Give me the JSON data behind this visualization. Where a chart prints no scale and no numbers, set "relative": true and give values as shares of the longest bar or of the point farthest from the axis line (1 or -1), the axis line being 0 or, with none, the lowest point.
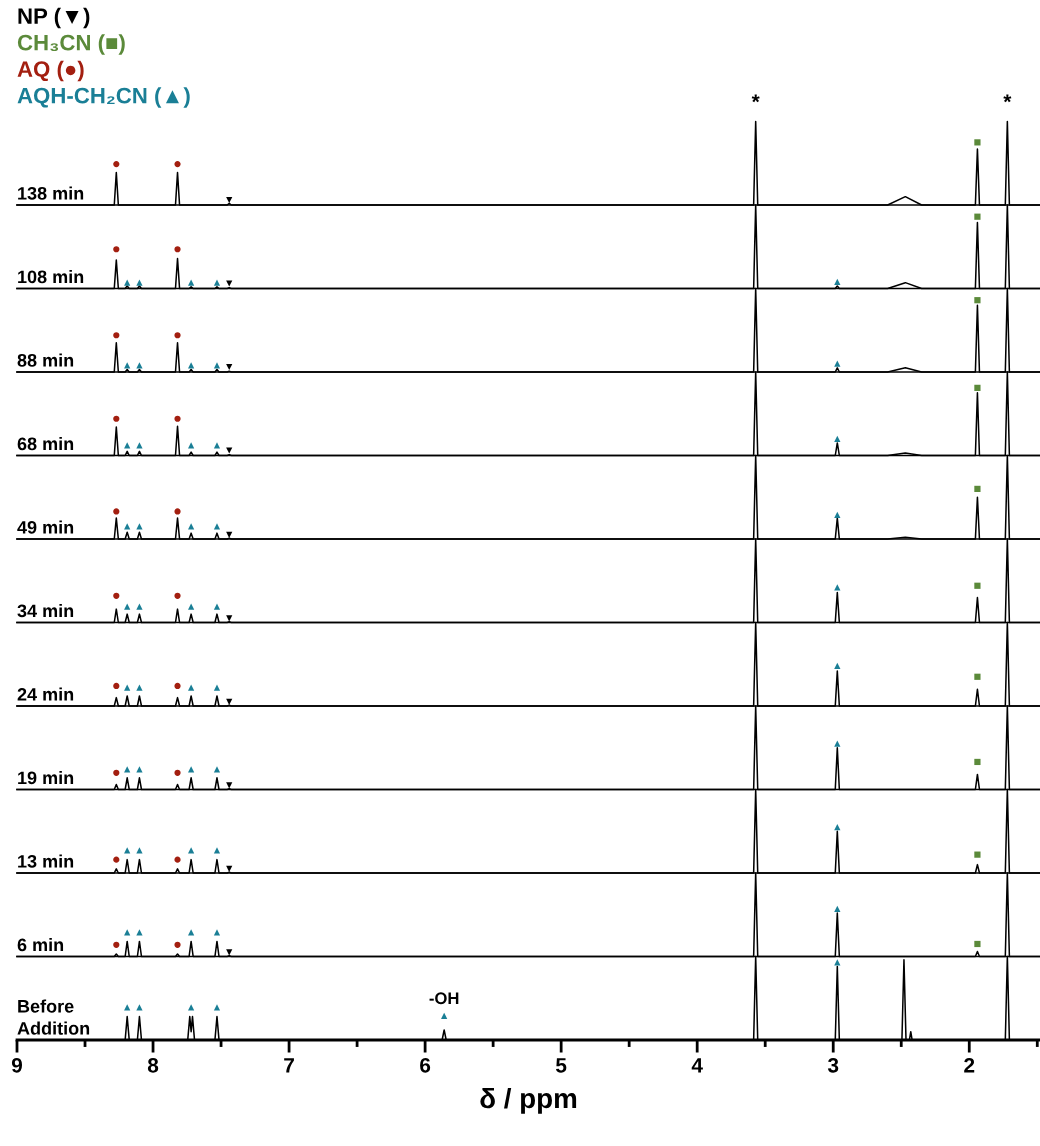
{
  "chart_data": [
    {
      "type": "line",
      "relative": true,
      "xlim": [
        9,
        1.48
      ],
      "tick_labels": false,
      "annotations": [
        "138 min",
        {
          "text": "*",
          "x": 3.57,
          "y": 1
        },
        {
          "text": "*",
          "x": 1.72,
          "y": 1
        }
      ],
      "series": [
        {
          "color": "#000000",
          "x": [
            9,
            8.285,
            8.27,
            8.255,
            7.835,
            7.82,
            7.805,
            7.455,
            7.44,
            7.425,
            3.585,
            3.57,
            3.555,
            2.6,
            2.47,
            2.35,
            1.955,
            1.94,
            1.925,
            1.735,
            1.72,
            1.705,
            1.48
          ],
          "values": [
            0,
            0,
            0.39,
            0,
            0,
            0.39,
            0,
            0,
            0.02,
            0,
            0,
            1,
            0,
            0,
            0.1,
            0,
            0,
            0.67,
            0,
            0,
            1,
            0,
            0
          ]
        },
        {
          "type": "scatter",
          "marker": "triangle_down",
          "color": "#000000",
          "x": [
            7.44
          ],
          "values": [
            0.06
          ]
        },
        {
          "type": "scatter",
          "marker": "square",
          "color": "#5b8a3a",
          "x": [
            1.94
          ],
          "values": [
            0.75
          ]
        },
        {
          "type": "scatter",
          "marker": "circle",
          "color": "#a31f10",
          "x": [
            8.27,
            7.82
          ],
          "values": [
            0.49,
            0.49
          ]
        }
      ]
    },
    {
      "type": "line",
      "relative": true,
      "xlim": [
        9,
        1.48
      ],
      "tick_labels": false,
      "annotations": [
        "108 min"
      ],
      "series": [
        {
          "color": "#000000",
          "x": [
            9,
            8.285,
            8.27,
            8.255,
            8.205,
            8.19,
            8.175,
            8.115,
            8.1,
            8.085,
            7.835,
            7.82,
            7.805,
            7.735,
            7.72,
            7.705,
            7.545,
            7.53,
            7.515,
            7.455,
            7.44,
            7.425,
            3.585,
            3.57,
            3.555,
            2.985,
            2.97,
            2.955,
            2.6,
            2.47,
            2.35,
            1.955,
            1.94,
            1.925,
            1.735,
            1.72,
            1.705,
            1.48
          ],
          "values": [
            0,
            0,
            0.34,
            0,
            0,
            0.03,
            0,
            0,
            0.03,
            0,
            0,
            0.36,
            0,
            0,
            0.02,
            0,
            0,
            0.02,
            0,
            0,
            0.01,
            0,
            0,
            1,
            0,
            0,
            0.03,
            0,
            0,
            0.07,
            0,
            0,
            0.79,
            0,
            0,
            1,
            0,
            0
          ]
        },
        {
          "type": "scatter",
          "name": "NP (▼)",
          "marker": "triangle_down",
          "color": "#000000",
          "x": [
            7.44
          ],
          "values": [
            0.06
          ]
        },
        {
          "type": "scatter",
          "name": "CH₃CN (■)",
          "marker": "square",
          "color": "#5b8a3a",
          "x": [
            1.94
          ],
          "values": [
            0.86
          ]
        },
        {
          "type": "scatter",
          "name": "AQ (●)",
          "marker": "circle",
          "color": "#a31f10",
          "x": [
            8.27,
            7.82
          ],
          "values": [
            0.47,
            0.47
          ]
        },
        {
          "type": "scatter",
          "name": "AQH-CH₂CN (▲)",
          "marker": "triangle",
          "color": "#1a7f96",
          "x": [
            8.19,
            8.1,
            7.72,
            7.53,
            2.97
          ],
          "values": [
            0.07,
            0.07,
            0.07,
            0.07,
            0.08
          ]
        }
      ]
    },
    {
      "type": "line",
      "relative": true,
      "xlim": [
        9,
        1.48
      ],
      "tick_labels": false,
      "annotations": [
        "88 min"
      ],
      "series": [
        {
          "color": "#000000",
          "x": [
            9,
            8.285,
            8.27,
            8.255,
            8.205,
            8.19,
            8.175,
            8.115,
            8.1,
            8.085,
            7.835,
            7.82,
            7.805,
            7.735,
            7.72,
            7.705,
            7.545,
            7.53,
            7.515,
            7.455,
            7.44,
            7.425,
            3.585,
            3.57,
            3.555,
            2.985,
            2.97,
            2.955,
            2.6,
            2.47,
            2.35,
            1.955,
            1.94,
            1.925,
            1.735,
            1.72,
            1.705,
            1.48
          ],
          "values": [
            0,
            0,
            0.35,
            0,
            0,
            0.03,
            0,
            0,
            0.03,
            0,
            0,
            0.35,
            0,
            0,
            0.03,
            0,
            0,
            0.03,
            0,
            0,
            0.01,
            0,
            0,
            1,
            0,
            0,
            0.05,
            0,
            0,
            0.05,
            0,
            0,
            0.8,
            0,
            0,
            1,
            0,
            0
          ]
        },
        {
          "type": "scatter",
          "marker": "triangle_down",
          "color": "#000000",
          "x": [
            7.44
          ],
          "values": [
            0.06
          ]
        },
        {
          "type": "scatter",
          "marker": "square",
          "color": "#5b8a3a",
          "x": [
            1.94
          ],
          "values": [
            0.86
          ]
        },
        {
          "type": "scatter",
          "marker": "circle",
          "color": "#a31f10",
          "x": [
            8.27,
            7.82
          ],
          "values": [
            0.44,
            0.44
          ]
        },
        {
          "type": "scatter",
          "marker": "triangle",
          "color": "#1a7f96",
          "x": [
            8.19,
            8.1,
            7.72,
            7.53,
            2.97
          ],
          "values": [
            0.08,
            0.08,
            0.08,
            0.08,
            0.1
          ]
        }
      ]
    },
    {
      "type": "line",
      "relative": true,
      "xlim": [
        9,
        1.48
      ],
      "tick_labels": false,
      "annotations": [
        "68 min"
      ],
      "series": [
        {
          "color": "#000000",
          "x": [
            9,
            8.285,
            8.27,
            8.255,
            8.205,
            8.19,
            8.175,
            8.115,
            8.1,
            8.085,
            7.835,
            7.82,
            7.805,
            7.735,
            7.72,
            7.705,
            7.545,
            7.53,
            7.515,
            7.455,
            7.44,
            7.425,
            3.585,
            3.57,
            3.555,
            2.985,
            2.97,
            2.955,
            2.6,
            2.47,
            2.35,
            1.955,
            1.94,
            1.925,
            1.735,
            1.72,
            1.705,
            1.48
          ],
          "values": [
            0,
            0,
            0.34,
            0,
            0,
            0.05,
            0,
            0,
            0.05,
            0,
            0,
            0.35,
            0,
            0,
            0.04,
            0,
            0,
            0.04,
            0,
            0,
            0.01,
            0,
            0,
            1,
            0,
            0,
            0.15,
            0,
            0,
            0.03,
            0,
            0,
            0.75,
            0,
            0,
            1,
            0,
            0
          ]
        },
        {
          "type": "scatter",
          "marker": "triangle_down",
          "color": "#000000",
          "x": [
            7.44
          ],
          "values": [
            0.06
          ]
        },
        {
          "type": "scatter",
          "marker": "square",
          "color": "#5b8a3a",
          "x": [
            1.94
          ],
          "values": [
            0.81
          ]
        },
        {
          "type": "scatter",
          "marker": "circle",
          "color": "#a31f10",
          "x": [
            8.27,
            7.82
          ],
          "values": [
            0.44,
            0.44
          ]
        },
        {
          "type": "scatter",
          "marker": "triangle",
          "color": "#1a7f96",
          "x": [
            8.19,
            8.1,
            7.72,
            7.53,
            2.97
          ],
          "values": [
            0.12,
            0.12,
            0.12,
            0.12,
            0.2
          ]
        }
      ]
    },
    {
      "type": "line",
      "relative": true,
      "xlim": [
        9,
        1.48
      ],
      "tick_labels": false,
      "annotations": [
        "49 min"
      ],
      "series": [
        {
          "color": "#000000",
          "x": [
            9,
            8.285,
            8.27,
            8.255,
            8.205,
            8.19,
            8.175,
            8.115,
            8.1,
            8.085,
            7.835,
            7.82,
            7.805,
            7.735,
            7.72,
            7.705,
            7.545,
            7.53,
            7.515,
            7.455,
            7.44,
            7.425,
            3.585,
            3.57,
            3.555,
            2.985,
            2.97,
            2.955,
            2.6,
            2.47,
            2.35,
            1.955,
            1.94,
            1.925,
            1.735,
            1.72,
            1.705,
            1.48
          ],
          "values": [
            0,
            0,
            0.25,
            0,
            0,
            0.08,
            0,
            0,
            0.08,
            0,
            0,
            0.25,
            0,
            0,
            0.07,
            0,
            0,
            0.07,
            0,
            0,
            0.01,
            0,
            0,
            1,
            0,
            0,
            0.25,
            0,
            0,
            0.02,
            0,
            0,
            0.5,
            0,
            0,
            1,
            0,
            0
          ]
        },
        {
          "type": "scatter",
          "marker": "triangle_down",
          "color": "#000000",
          "x": [
            7.44
          ],
          "values": [
            0.05
          ]
        },
        {
          "type": "scatter",
          "marker": "square",
          "color": "#5b8a3a",
          "x": [
            1.94
          ],
          "values": [
            0.6
          ]
        },
        {
          "type": "scatter",
          "marker": "circle",
          "color": "#a31f10",
          "x": [
            8.27,
            7.82
          ],
          "values": [
            0.33,
            0.33
          ]
        },
        {
          "type": "scatter",
          "marker": "triangle",
          "color": "#1a7f96",
          "x": [
            8.19,
            8.1,
            7.72,
            7.53,
            2.97
          ],
          "values": [
            0.15,
            0.15,
            0.15,
            0.15,
            0.29
          ]
        }
      ]
    },
    {
      "type": "line",
      "relative": true,
      "xlim": [
        9,
        1.48
      ],
      "tick_labels": false,
      "annotations": [
        "34 min"
      ],
      "series": [
        {
          "color": "#000000",
          "x": [
            9,
            8.285,
            8.27,
            8.255,
            8.205,
            8.19,
            8.175,
            8.115,
            8.1,
            8.085,
            7.835,
            7.82,
            7.805,
            7.735,
            7.72,
            7.705,
            7.545,
            7.53,
            7.515,
            7.455,
            7.44,
            7.425,
            3.585,
            3.57,
            3.555,
            2.985,
            2.97,
            2.955,
            1.955,
            1.94,
            1.925,
            1.735,
            1.72,
            1.705,
            1.48
          ],
          "values": [
            0,
            0,
            0.16,
            0,
            0,
            0.1,
            0,
            0,
            0.1,
            0,
            0,
            0.16,
            0,
            0,
            0.1,
            0,
            0,
            0.1,
            0,
            0,
            0.01,
            0,
            0,
            1,
            0,
            0,
            0.36,
            0,
            0,
            0.3,
            0,
            0,
            1,
            0,
            0
          ]
        },
        {
          "type": "scatter",
          "marker": "triangle_down",
          "color": "#000000",
          "x": [
            7.44
          ],
          "values": [
            0.05
          ]
        },
        {
          "type": "scatter",
          "marker": "square",
          "color": "#5b8a3a",
          "x": [
            1.94
          ],
          "values": [
            0.44
          ]
        },
        {
          "type": "scatter",
          "marker": "circle",
          "color": "#a31f10",
          "x": [
            8.27,
            7.82
          ],
          "values": [
            0.32,
            0.32
          ]
        },
        {
          "type": "scatter",
          "marker": "triangle",
          "color": "#1a7f96",
          "x": [
            8.19,
            8.1,
            7.72,
            7.53,
            2.97
          ],
          "values": [
            0.19,
            0.19,
            0.19,
            0.19,
            0.42
          ]
        }
      ]
    },
    {
      "type": "line",
      "relative": true,
      "xlim": [
        9,
        1.48
      ],
      "tick_labels": false,
      "annotations": [
        "24 min"
      ],
      "series": [
        {
          "color": "#000000",
          "x": [
            9,
            8.285,
            8.27,
            8.255,
            8.205,
            8.19,
            8.175,
            8.115,
            8.1,
            8.085,
            7.835,
            7.82,
            7.805,
            7.735,
            7.72,
            7.705,
            7.545,
            7.53,
            7.515,
            7.455,
            7.44,
            7.425,
            3.585,
            3.57,
            3.555,
            2.985,
            2.97,
            2.955,
            1.955,
            1.94,
            1.925,
            1.735,
            1.72,
            1.705,
            1.48
          ],
          "values": [
            0,
            0,
            0.1,
            0,
            0,
            0.12,
            0,
            0,
            0.12,
            0,
            0,
            0.1,
            0,
            0,
            0.12,
            0,
            0,
            0.12,
            0,
            0,
            0.01,
            0,
            0,
            1,
            0,
            0,
            0.42,
            0,
            0,
            0.2,
            0,
            0,
            1,
            0,
            0
          ]
        },
        {
          "type": "scatter",
          "marker": "triangle_down",
          "color": "#000000",
          "x": [
            7.44
          ],
          "values": [
            0.05
          ]
        },
        {
          "type": "scatter",
          "marker": "square",
          "color": "#5b8a3a",
          "x": [
            1.94
          ],
          "values": [
            0.35
          ]
        },
        {
          "type": "scatter",
          "marker": "circle",
          "color": "#a31f10",
          "x": [
            8.27,
            7.82
          ],
          "values": [
            0.24,
            0.24
          ]
        },
        {
          "type": "scatter",
          "marker": "triangle",
          "color": "#1a7f96",
          "x": [
            8.19,
            8.1,
            7.72,
            7.53,
            2.97
          ],
          "values": [
            0.22,
            0.22,
            0.22,
            0.22,
            0.48
          ]
        }
      ]
    },
    {
      "type": "line",
      "relative": true,
      "xlim": [
        9,
        1.48
      ],
      "tick_labels": false,
      "annotations": [
        "19 min"
      ],
      "series": [
        {
          "color": "#000000",
          "x": [
            9,
            8.285,
            8.27,
            8.255,
            8.205,
            8.19,
            8.175,
            8.115,
            8.1,
            8.085,
            7.835,
            7.82,
            7.805,
            7.735,
            7.72,
            7.705,
            7.545,
            7.53,
            7.515,
            7.455,
            7.44,
            7.425,
            3.585,
            3.57,
            3.555,
            2.985,
            2.97,
            2.955,
            1.955,
            1.94,
            1.925,
            1.735,
            1.72,
            1.705,
            1.48
          ],
          "values": [
            0,
            0,
            0.06,
            0,
            0,
            0.14,
            0,
            0,
            0.14,
            0,
            0,
            0.06,
            0,
            0,
            0.14,
            0,
            0,
            0.14,
            0,
            0,
            0.01,
            0,
            0,
            1,
            0,
            0,
            0.5,
            0,
            0,
            0.18,
            0,
            0,
            1,
            0,
            0
          ]
        },
        {
          "type": "scatter",
          "marker": "triangle_down",
          "color": "#000000",
          "x": [
            7.44
          ],
          "values": [
            0.05
          ]
        },
        {
          "type": "scatter",
          "marker": "square",
          "color": "#5b8a3a",
          "x": [
            1.94
          ],
          "values": [
            0.33
          ]
        },
        {
          "type": "scatter",
          "marker": "circle",
          "color": "#a31f10",
          "x": [
            8.27,
            7.82
          ],
          "values": [
            0.2,
            0.2
          ]
        },
        {
          "type": "scatter",
          "marker": "triangle",
          "color": "#1a7f96",
          "x": [
            8.19,
            8.1,
            7.72,
            7.53,
            2.97
          ],
          "values": [
            0.24,
            0.24,
            0.24,
            0.24,
            0.55
          ]
        }
      ]
    },
    {
      "type": "line",
      "relative": true,
      "xlim": [
        9,
        1.48
      ],
      "tick_labels": false,
      "annotations": [
        "13 min"
      ],
      "series": [
        {
          "color": "#000000",
          "x": [
            9,
            8.285,
            8.27,
            8.255,
            8.205,
            8.19,
            8.175,
            8.115,
            8.1,
            8.085,
            7.835,
            7.82,
            7.805,
            7.735,
            7.72,
            7.705,
            7.545,
            7.53,
            7.515,
            7.455,
            7.44,
            7.425,
            3.585,
            3.57,
            3.555,
            2.985,
            2.97,
            2.955,
            1.955,
            1.94,
            1.925,
            1.735,
            1.72,
            1.705,
            1.48
          ],
          "values": [
            0,
            0,
            0.05,
            0,
            0,
            0.16,
            0,
            0,
            0.16,
            0,
            0,
            0.05,
            0,
            0,
            0.16,
            0,
            0,
            0.16,
            0,
            0,
            0.01,
            0,
            0,
            1,
            0,
            0,
            0.5,
            0,
            0,
            0.1,
            0,
            0,
            1,
            0,
            0
          ]
        },
        {
          "type": "scatter",
          "marker": "triangle_down",
          "color": "#000000",
          "x": [
            7.44
          ],
          "values": [
            0.05
          ]
        },
        {
          "type": "scatter",
          "marker": "square",
          "color": "#5b8a3a",
          "x": [
            1.94
          ],
          "values": [
            0.22
          ]
        },
        {
          "type": "scatter",
          "marker": "circle",
          "color": "#a31f10",
          "x": [
            8.27,
            7.82
          ],
          "values": [
            0.16,
            0.16
          ]
        },
        {
          "type": "scatter",
          "marker": "triangle",
          "color": "#1a7f96",
          "x": [
            8.19,
            8.1,
            7.72,
            7.53,
            2.97
          ],
          "values": [
            0.27,
            0.27,
            0.27,
            0.27,
            0.55
          ]
        }
      ]
    },
    {
      "type": "line",
      "relative": true,
      "xlim": [
        9,
        1.48
      ],
      "tick_labels": false,
      "annotations": [
        "6 min"
      ],
      "series": [
        {
          "color": "#000000",
          "x": [
            9,
            8.285,
            8.27,
            8.255,
            8.205,
            8.19,
            8.175,
            8.115,
            8.1,
            8.085,
            7.835,
            7.82,
            7.805,
            7.735,
            7.72,
            7.705,
            7.545,
            7.53,
            7.515,
            7.455,
            7.44,
            7.425,
            3.585,
            3.57,
            3.555,
            2.985,
            2.97,
            2.955,
            1.955,
            1.94,
            1.925,
            1.735,
            1.72,
            1.705,
            1.48
          ],
          "values": [
            0,
            0,
            0.03,
            0,
            0,
            0.18,
            0,
            0,
            0.18,
            0,
            0,
            0.03,
            0,
            0,
            0.18,
            0,
            0,
            0.18,
            0,
            0,
            0.01,
            0,
            0,
            1,
            0,
            0,
            0.52,
            0,
            0,
            0.06,
            0,
            0,
            1,
            0,
            0
          ]
        },
        {
          "type": "scatter",
          "marker": "triangle_down",
          "color": "#000000",
          "x": [
            7.44
          ],
          "values": [
            0.05
          ]
        },
        {
          "type": "scatter",
          "marker": "square",
          "color": "#5b8a3a",
          "x": [
            1.94
          ],
          "values": [
            0.15
          ]
        },
        {
          "type": "scatter",
          "marker": "circle",
          "color": "#a31f10",
          "x": [
            8.27,
            7.82
          ],
          "values": [
            0.14,
            0.14
          ]
        },
        {
          "type": "scatter",
          "marker": "triangle",
          "color": "#1a7f96",
          "x": [
            8.19,
            8.1,
            7.72,
            7.53,
            2.97
          ],
          "values": [
            0.29,
            0.29,
            0.29,
            0.29,
            0.57
          ]
        }
      ]
    },
    {
      "type": "line",
      "relative": true,
      "xlim": [
        9,
        1.48
      ],
      "tick_labels": "x",
      "xticks": [
        9,
        {
          "value": 8.5,
          "label": null
        },
        8,
        {
          "value": 7.5,
          "label": null
        },
        7,
        {
          "value": 6.5,
          "label": null
        },
        6,
        {
          "value": 5.5,
          "label": null
        },
        5,
        {
          "value": 4.5,
          "label": null
        },
        4,
        {
          "value": 3.5,
          "label": null
        },
        3,
        {
          "value": 2.5,
          "label": null
        },
        2,
        {
          "value": 1.5,
          "label": null
        }
      ],
      "xlabel": "δ / ppm",
      "annotations": [
        "Before\nAddition",
        {
          "text": "-OH",
          "x": 5.86,
          "y": 0.29
        }
      ],
      "series": [
        {
          "color": "#000000",
          "x": [
            9,
            8.205,
            8.19,
            8.175,
            8.115,
            8.1,
            8.085,
            7.745,
            7.73,
            7.72,
            7.71,
            7.695,
            7.545,
            7.53,
            7.515,
            5.875,
            5.86,
            5.845,
            3.585,
            3.57,
            3.555,
            2.985,
            2.97,
            2.955,
            2.495,
            2.48,
            2.465,
            2.44,
            2.43,
            2.42,
            1.735,
            1.72,
            1.705,
            1.48
          ],
          "values": [
            0,
            0,
            0.28,
            0,
            0,
            0.28,
            0,
            0,
            0.28,
            0.1,
            0.28,
            0,
            0,
            0.28,
            0,
            0,
            0.12,
            0,
            0,
            1,
            0,
            0,
            0.88,
            0,
            0,
            0.96,
            0,
            0,
            0.1,
            0,
            0,
            1,
            0,
            0
          ]
        },
        {
          "type": "scatter",
          "marker": "triangle",
          "color": "#1a7f96",
          "x": [
            8.19,
            8.1,
            7.72,
            7.53,
            5.86,
            2.97
          ],
          "values": [
            0.39,
            0.39,
            0.39,
            0.39,
            0.29,
            0.93
          ]
        }
      ]
    }
  ]
}
